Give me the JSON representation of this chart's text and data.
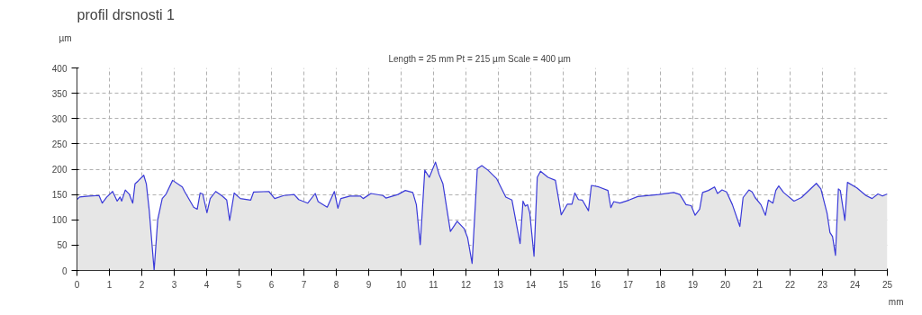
{
  "chart_data": {
    "type": "area",
    "title": "profil drsnosti 1",
    "subtitle": "Length = 25 mm  Pt = 215 µm  Scale = 400 µm",
    "xlabel": "mm",
    "ylabel": "µm",
    "xlim": [
      0,
      25
    ],
    "ylim": [
      0,
      400
    ],
    "xticks": [
      0,
      1,
      2,
      3,
      4,
      5,
      6,
      7,
      8,
      9,
      10,
      11,
      12,
      13,
      14,
      15,
      16,
      17,
      18,
      19,
      20,
      21,
      22,
      23,
      24,
      25
    ],
    "yticks": [
      0,
      50,
      100,
      150,
      200,
      250,
      300,
      350,
      400
    ],
    "grid": true,
    "line_style": "solid",
    "series": [
      {
        "color": "#3a3ad8",
        "x": [
          0,
          0.08,
          0.36,
          0.68,
          0.78,
          0.92,
          1.1,
          1.24,
          1.33,
          1.38,
          1.49,
          1.61,
          1.72,
          1.79,
          1.89,
          2.06,
          2.14,
          2.23,
          2.38,
          2.49,
          2.63,
          2.75,
          2.95,
          3.25,
          3.32,
          3.6,
          3.71,
          3.8,
          3.88,
          4.01,
          4.11,
          4.28,
          4.48,
          4.62,
          4.71,
          4.85,
          5.04,
          5.36,
          5.45,
          5.92,
          6.1,
          6.38,
          6.7,
          6.84,
          7.12,
          7.35,
          7.44,
          7.72,
          7.94,
          8.05,
          8.14,
          8.42,
          8.74,
          8.83,
          9.07,
          9.44,
          9.53,
          9.9,
          10.13,
          10.36,
          10.47,
          10.59,
          10.73,
          10.87,
          11.06,
          11.17,
          11.29,
          11.52,
          11.73,
          11.94,
          12.05,
          12.19,
          12.35,
          12.49,
          12.68,
          12.95,
          13.23,
          13.42,
          13.67,
          13.76,
          13.83,
          13.9,
          13.97,
          14.1,
          14.2,
          14.3,
          14.53,
          14.76,
          14.94,
          15.13,
          15.27,
          15.36,
          15.47,
          15.59,
          15.78,
          15.87,
          16.1,
          16.38,
          16.47,
          16.56,
          16.75,
          17.03,
          17.3,
          17.95,
          18.41,
          18.6,
          18.79,
          18.95,
          19.07,
          19.21,
          19.3,
          19.48,
          19.67,
          19.76,
          19.9,
          20.04,
          20.22,
          20.45,
          20.55,
          20.73,
          20.83,
          20.92,
          21.1,
          21.24,
          21.33,
          21.47,
          21.56,
          21.65,
          21.8,
          22.12,
          22.35,
          22.81,
          22.95,
          23.14,
          23.23,
          23.31,
          23.4,
          23.49,
          23.55,
          23.69,
          23.77,
          24.06,
          24.34,
          24.53,
          24.71,
          24.85,
          25
        ],
        "values": [
          140,
          145,
          147,
          148,
          133,
          145,
          156,
          137,
          145,
          137,
          159,
          151,
          133,
          171,
          177,
          188,
          171,
          118,
          0,
          100,
          142,
          151,
          178,
          165,
          156,
          125,
          121,
          153,
          151,
          114,
          142,
          156,
          147,
          139,
          99,
          153,
          142,
          139,
          155,
          156,
          142,
          148,
          150,
          140,
          133,
          152,
          136,
          125,
          156,
          123,
          142,
          147,
          147,
          142,
          152,
          148,
          143,
          150,
          158,
          154,
          130,
          51,
          198,
          184,
          214,
          190,
          171,
          77,
          97,
          83,
          65,
          14,
          201,
          207,
          198,
          181,
          145,
          139,
          53,
          137,
          127,
          130,
          113,
          28,
          184,
          196,
          184,
          178,
          110,
          131,
          131,
          153,
          140,
          139,
          118,
          168,
          165,
          158,
          124,
          136,
          133,
          139,
          146,
          150,
          154,
          150,
          130,
          128,
          109,
          121,
          154,
          158,
          165,
          152,
          159,
          155,
          130,
          87,
          144,
          159,
          155,
          144,
          130,
          109,
          139,
          133,
          158,
          167,
          154,
          137,
          144,
          172,
          161,
          113,
          75,
          67,
          30,
          161,
          158,
          99,
          174,
          163,
          148,
          142,
          151,
          147,
          151
        ]
      }
    ]
  }
}
